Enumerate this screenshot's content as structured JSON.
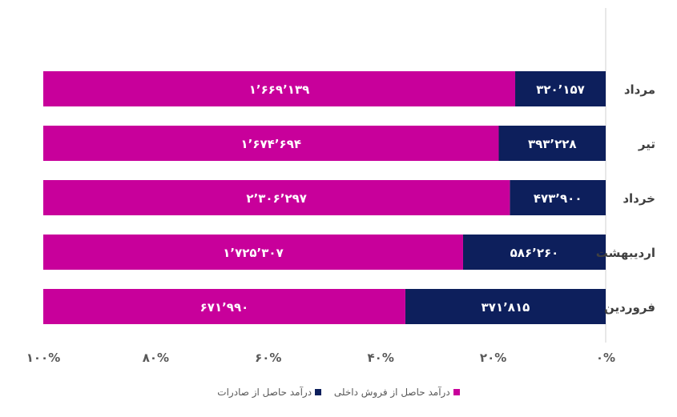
{
  "chart_data": {
    "type": "bar",
    "orientation": "horizontal",
    "stacked": "percent",
    "categories": [
      "مرداد",
      "تیر",
      "خرداد",
      "اردیبهشت",
      "فروردین"
    ],
    "categories_display": [
      "مرداد",
      "تیر",
      "خرداد",
      "اردیبهشت",
      "فروردین"
    ],
    "series": [
      {
        "name": "درآمد حاصل از صادرات",
        "color": "#0d1f5c",
        "values": [
          320157,
          393228,
          473900,
          586260,
          371815
        ],
        "labels": [
          "۳۲۰’۱۵۷",
          "۳۹۳’۲۲۸",
          "۴۷۳’۹۰۰",
          "۵۸۶’۲۶۰",
          "۳۷۱’۸۱۵"
        ]
      },
      {
        "name": "درآمد حاصل از فروش داخلی",
        "color": "#c8009b",
        "values": [
          1669139,
          1674694,
          2306297,
          1725307,
          671990
        ],
        "labels": [
          "۱’۶۶۹’۱۳۹",
          "۱’۶۷۴’۶۹۴",
          "۲’۳۰۶’۲۹۷",
          "۱’۷۲۵’۳۰۷",
          "۶۷۱’۹۹۰"
        ]
      }
    ],
    "x_axis": {
      "range": [
        0,
        100
      ],
      "direction": "right-to-left",
      "ticks": [
        0,
        20,
        40,
        60,
        80,
        100
      ],
      "tick_labels": [
        "۰%",
        "۲۰%",
        "۴۰%",
        "۶۰%",
        "۸۰%",
        "۱۰۰%"
      ]
    },
    "title": "",
    "xlabel": "",
    "ylabel": "",
    "legend_position": "bottom"
  }
}
